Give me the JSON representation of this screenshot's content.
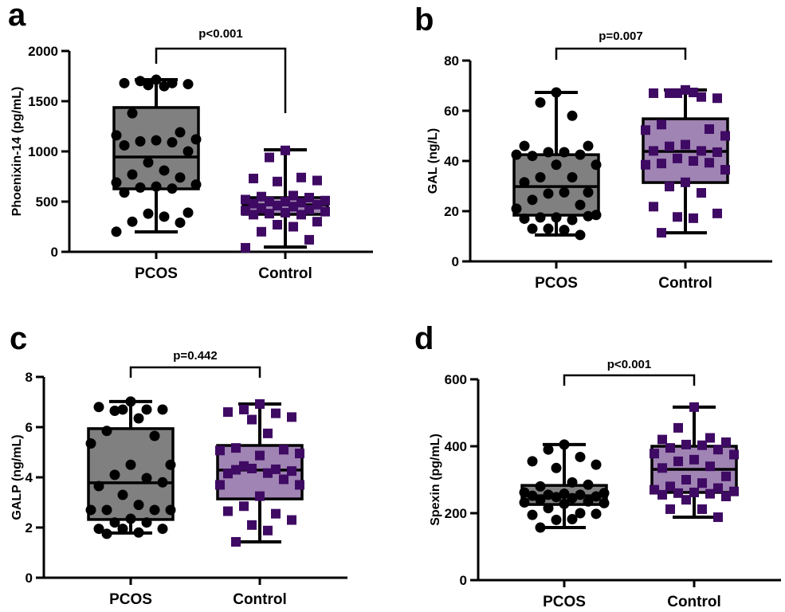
{
  "chart_data": [
    {
      "type": "box",
      "panel": "a",
      "ylabel": "Phoenixin-14 (pg/mL)",
      "categories": [
        "PCOS",
        "Control"
      ],
      "ylim": [
        0,
        2000
      ],
      "yticks": [
        0,
        500,
        1000,
        1500,
        2000
      ],
      "p_value": "p<0.001",
      "colors": {
        "PCOS": "#808080",
        "Control": "#a084b4"
      },
      "marker_colors": {
        "PCOS": "#000000",
        "Control": "#3f0a63"
      },
      "markers": {
        "PCOS": "circle",
        "Control": "square"
      },
      "series": [
        {
          "name": "PCOS",
          "min": 198,
          "q1": 627,
          "median": 944,
          "q3": 1437,
          "max": 1714,
          "points": [
            1714,
            1700,
            1680,
            1680,
            1670,
            1660,
            1650,
            1380,
            1190,
            1160,
            1120,
            1110,
            1100,
            1090,
            1060,
            1000,
            890,
            810,
            770,
            740,
            690,
            670,
            650,
            640,
            630,
            590,
            390,
            380,
            350,
            300,
            290,
            200
          ]
        },
        {
          "name": "Control",
          "min": 48,
          "q1": 373,
          "median": 468,
          "q3": 540,
          "max": 1016,
          "points": [
            1010,
            940,
            740,
            730,
            710,
            700,
            560,
            550,
            540,
            520,
            510,
            500,
            500,
            490,
            480,
            470,
            460,
            450,
            430,
            420,
            410,
            400,
            390,
            380,
            370,
            370,
            300,
            270,
            250,
            200,
            120,
            40
          ]
        }
      ]
    },
    {
      "type": "box",
      "panel": "b",
      "ylabel": "GAL (ng/L)",
      "categories": [
        "PCOS",
        "Control"
      ],
      "ylim": [
        0,
        80
      ],
      "yticks": [
        0,
        20,
        40,
        60,
        80
      ],
      "p_value": "p=0.007",
      "colors": {
        "PCOS": "#808080",
        "Control": "#a084b4"
      },
      "marker_colors": {
        "PCOS": "#000000",
        "Control": "#3f0a63"
      },
      "markers": {
        "PCOS": "circle",
        "Control": "square"
      },
      "series": [
        {
          "name": "PCOS",
          "min": 10.5,
          "q1": 18.4,
          "median": 29.8,
          "q3": 42.5,
          "max": 67.3,
          "points": [
            67.3,
            63.3,
            58,
            46,
            46,
            43.5,
            43.5,
            42,
            42.5,
            42.5,
            38.5,
            38.5,
            33.5,
            33.5,
            31.5,
            27.5,
            27,
            27.5,
            24.5,
            22.5,
            21,
            18.5,
            17.5,
            17.5,
            16.5,
            17,
            18,
            13,
            12.5,
            13,
            10.5
          ]
        },
        {
          "name": "Control",
          "min": 11.4,
          "q1": 31.4,
          "median": 43.8,
          "q3": 56.8,
          "max": 68.3,
          "points": [
            68.3,
            67,
            65.5,
            67,
            65,
            67,
            67.3,
            54.5,
            52.7,
            52.3,
            50,
            46.5,
            45.8,
            44,
            44,
            43.5,
            41,
            40,
            39,
            39.3,
            38.5,
            36.5,
            31.5,
            29.8,
            27.3,
            21.8,
            19.1,
            17.7,
            17.2,
            11.4
          ]
        }
      ]
    },
    {
      "type": "box",
      "panel": "c",
      "ylabel": "GALP (ng/mL)",
      "categories": [
        "PCOS",
        "Control"
      ],
      "ylim": [
        0,
        8
      ],
      "yticks": [
        0,
        2,
        4,
        6,
        8
      ],
      "p_value": "p=0.442",
      "colors": {
        "PCOS": "#808080",
        "Control": "#a084b4"
      },
      "marker_colors": {
        "PCOS": "#000000",
        "Control": "#3f0a63"
      },
      "markers": {
        "PCOS": "circle",
        "Control": "square"
      },
      "series": [
        {
          "name": "PCOS",
          "min": 1.78,
          "q1": 2.32,
          "median": 3.78,
          "q3": 5.94,
          "max": 7.02,
          "points": [
            7.02,
            6.65,
            6.7,
            6.8,
            6.7,
            6.7,
            6.35,
            5.85,
            5.65,
            5.35,
            4.5,
            4.5,
            4.1,
            3.97,
            3.65,
            3.8,
            3.3,
            2.9,
            2.7,
            2.7,
            2.7,
            2.7,
            2.35,
            2.2,
            2.2,
            1.95,
            1.95,
            1.95,
            1.8,
            1.75
          ]
        },
        {
          "name": "Control",
          "min": 1.43,
          "q1": 3.14,
          "median": 4.29,
          "q3": 5.27,
          "max": 6.92,
          "points": [
            6.92,
            6.7,
            6.55,
            6.6,
            6.4,
            6.3,
            5.75,
            5.17,
            5.1,
            5.07,
            4.95,
            4.87,
            4.45,
            4.32,
            4.15,
            4.25,
            4.35,
            4.17,
            4.3,
            3.92,
            3.7,
            3.7,
            3.25,
            2.85,
            2.55,
            2.65,
            2.3,
            2.1,
            1.88,
            1.43
          ]
        }
      ]
    },
    {
      "type": "box",
      "panel": "d",
      "ylabel": "Spexin (pg/mL)",
      "categories": [
        "PCOS",
        "Control"
      ],
      "ylim": [
        0,
        600
      ],
      "yticks": [
        0,
        200,
        400,
        600
      ],
      "p_value": "p<0.001",
      "colors": {
        "PCOS": "#808080",
        "Control": "#a084b4"
      },
      "marker_colors": {
        "PCOS": "#000000",
        "Control": "#3f0a63"
      },
      "markers": {
        "PCOS": "circle",
        "Control": "square"
      },
      "series": [
        {
          "name": "PCOS",
          "min": 157,
          "q1": 226,
          "median": 252,
          "q3": 283,
          "max": 405,
          "points": [
            405,
            390,
            368,
            355,
            345,
            335,
            292,
            280,
            285,
            262,
            260,
            258,
            255,
            255,
            252,
            250,
            248,
            245,
            240,
            235,
            232,
            230,
            228,
            215,
            200,
            195,
            198,
            180,
            182,
            157
          ]
        },
        {
          "name": "Control",
          "min": 188,
          "q1": 262,
          "median": 331,
          "q3": 400,
          "max": 517,
          "points": [
            517,
            455,
            425,
            420,
            412,
            405,
            403,
            395,
            390,
            378,
            375,
            360,
            355,
            340,
            335,
            310,
            300,
            290,
            280,
            275,
            270,
            265,
            262,
            260,
            258,
            255,
            250,
            240,
            212,
            212,
            188
          ]
        }
      ]
    }
  ],
  "labels": {
    "a": "a",
    "b": "b",
    "c": "c",
    "d": "d"
  }
}
